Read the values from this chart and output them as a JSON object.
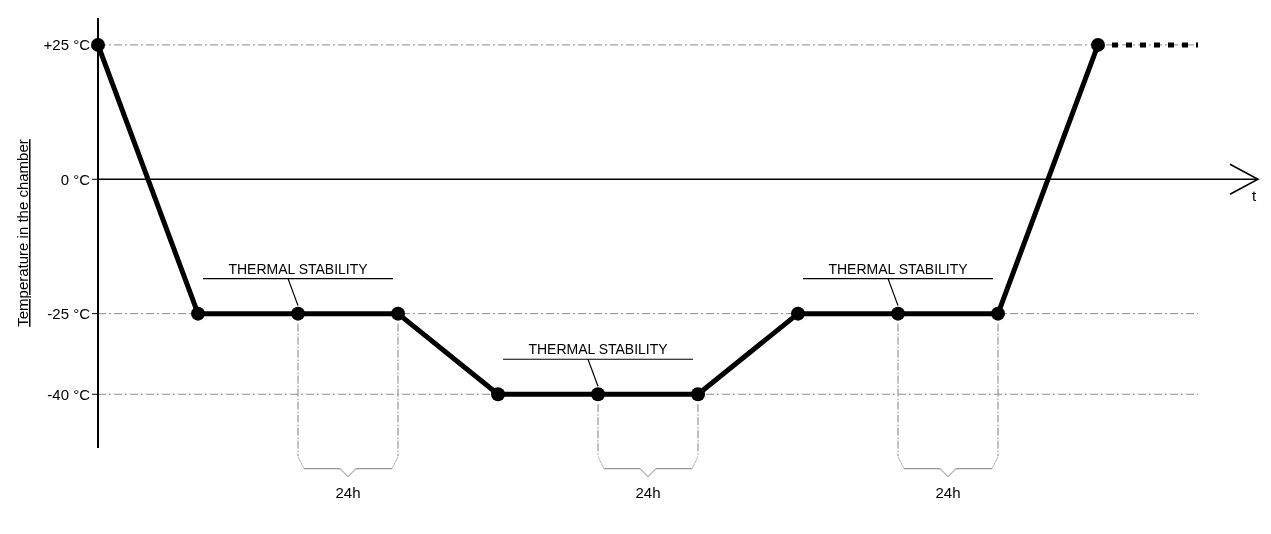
{
  "chart_data": {
    "type": "line",
    "ylabel": "Temperature in the chamber",
    "xlabel": "t",
    "categories": [
      null,
      null,
      null,
      null,
      null,
      null,
      null,
      null,
      null,
      null,
      null,
      null
    ],
    "ylim": [
      -50,
      30
    ],
    "yticks": [
      {
        "value": 25,
        "label": "+25 °C"
      },
      {
        "value": 0,
        "label": "0 °C"
      },
      {
        "value": -25,
        "label": "-25 °C"
      },
      {
        "value": -40,
        "label": "-40 °C"
      }
    ],
    "tick_labels": "y",
    "grid": "y",
    "series": [
      {
        "color": "#000000",
        "marker": "circle",
        "line_style": "solid",
        "values": [
          25,
          -25,
          -25,
          -25,
          -40,
          -40,
          -40,
          -25,
          -25,
          -25,
          25,
          null
        ]
      },
      {
        "color": "#000000",
        "marker": "none",
        "line_style": "dotted",
        "values": [
          null,
          null,
          null,
          null,
          null,
          null,
          null,
          null,
          null,
          null,
          25,
          25
        ]
      }
    ],
    "annotations": [
      "THERMAL STABILITY",
      "THERMAL STABILITY",
      "THERMAL STABILITY",
      "24h",
      "24h",
      "24h"
    ]
  }
}
